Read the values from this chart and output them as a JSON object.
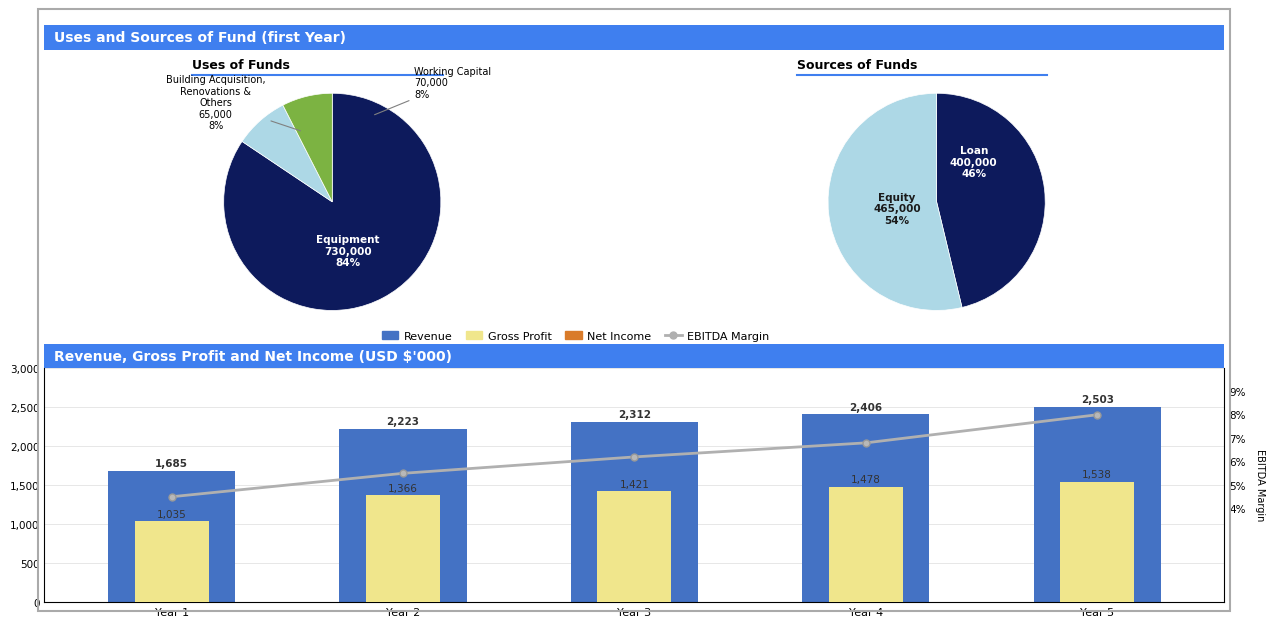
{
  "title1": "Uses and Sources of Fund (first Year)",
  "title2": "Revenue, Gross Profit and Net Income (USD $'000)",
  "header_color": "#3F7FEF",
  "header_text_color": "#FFFFFF",
  "bg_color": "#FFFFFF",
  "uses_title": "Uses of Funds",
  "uses_values": [
    730000,
    70000,
    65000
  ],
  "uses_colors": [
    "#0D1A5C",
    "#ADD8E6",
    "#7CB342"
  ],
  "sources_title": "Sources of Funds",
  "sources_values": [
    400000,
    465000
  ],
  "sources_colors": [
    "#0D1A5C",
    "#ADD8E6"
  ],
  "bar_categories": [
    "Year 1",
    "Year 2",
    "Year 3",
    "Year 4",
    "Year 5"
  ],
  "revenue": [
    1685,
    2223,
    2312,
    2406,
    2503
  ],
  "gross_profit": [
    1035,
    1366,
    1421,
    1478,
    1538
  ],
  "ebitda_margin": [
    4.5,
    5.5,
    6.2,
    6.8,
    8.0
  ],
  "revenue_color": "#4472C4",
  "gross_profit_color": "#F0E68C",
  "net_income_color": "#D97B2A",
  "ebitda_color": "#B0B0B0",
  "bar_ylim": [
    0,
    3000
  ],
  "bar_yticks": [
    0,
    500,
    1000,
    1500,
    2000,
    2500,
    3000
  ],
  "ebitda_ylim": [
    0,
    10
  ],
  "ebitda_yticks": [
    4,
    5,
    6,
    7,
    8,
    9
  ]
}
